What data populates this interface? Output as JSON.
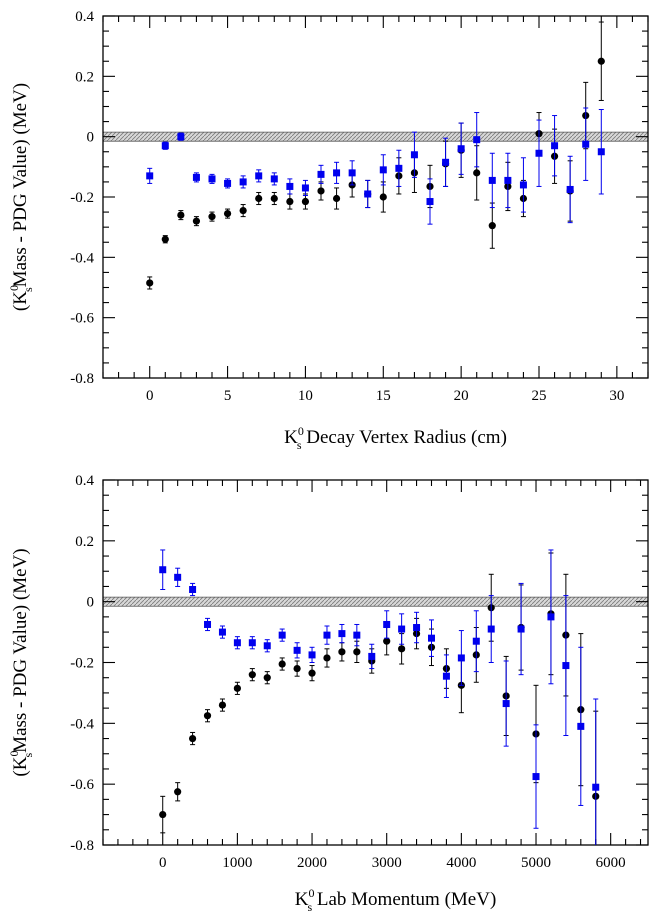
{
  "chart_data": [
    {
      "type": "scatter",
      "xlabel": "K Decay Vertex Radius (cm)",
      "ylabel": "(K Mass - PDG Value) (MeV)",
      "label_parts": {
        "x": {
          "k": "K",
          "sup": "0",
          "sub": "s",
          "rest": " Decay Vertex Radius (cm)"
        },
        "y": {
          "open": "(K",
          "sup": "0",
          "sub": "s",
          "rest": "Mass - PDG Value) (MeV)"
        }
      },
      "xlim": [
        -3,
        32
      ],
      "ylim": [
        -0.8,
        0.4
      ],
      "xticks": [
        0,
        5,
        10,
        15,
        20,
        25,
        30
      ],
      "xtick_labels": [
        "0",
        "5",
        "10",
        "15",
        "20",
        "25",
        "30"
      ],
      "yticks": [
        -0.8,
        -0.6,
        -0.4,
        -0.2,
        0,
        0.2,
        0.4
      ],
      "ytick_labels": [
        "-0.8",
        "-0.6",
        "-0.4",
        "-0.2",
        "0",
        "0.2",
        "0.4"
      ],
      "band": [
        -0.015,
        0.015
      ],
      "series": [
        {
          "color": "#000000",
          "marker": "circle",
          "x": [
            0,
            1,
            2,
            3,
            4,
            5,
            6,
            7,
            8,
            9,
            10,
            11,
            12,
            13,
            14,
            15,
            16,
            17,
            18,
            19,
            20,
            21,
            22,
            23,
            24,
            25,
            26,
            27,
            28,
            29
          ],
          "y": [
            -0.485,
            -0.34,
            -0.26,
            -0.28,
            -0.265,
            -0.255,
            -0.245,
            -0.205,
            -0.205,
            -0.215,
            -0.215,
            -0.18,
            -0.205,
            -0.16,
            -0.19,
            -0.2,
            -0.13,
            -0.12,
            -0.165,
            -0.09,
            -0.045,
            -0.12,
            -0.295,
            -0.165,
            -0.205,
            0.01,
            -0.065,
            -0.18,
            0.07,
            0.25
          ],
          "err": [
            0.02,
            0.012,
            0.015,
            0.015,
            0.015,
            0.015,
            0.02,
            0.02,
            0.02,
            0.025,
            0.025,
            0.03,
            0.035,
            0.04,
            0.045,
            0.05,
            0.06,
            0.065,
            0.07,
            0.075,
            0.09,
            0.09,
            0.075,
            0.08,
            0.06,
            0.07,
            0.09,
            0.1,
            0.11,
            0.13
          ]
        },
        {
          "color": "#0000ee",
          "marker": "square",
          "x": [
            0,
            1,
            2,
            3,
            4,
            5,
            6,
            7,
            8,
            9,
            10,
            11,
            12,
            13,
            14,
            15,
            16,
            17,
            18,
            19,
            20,
            21,
            22,
            23,
            24,
            25,
            26,
            27,
            28,
            29
          ],
          "y": [
            -0.13,
            -0.03,
            0.0,
            -0.135,
            -0.14,
            -0.155,
            -0.15,
            -0.13,
            -0.14,
            -0.165,
            -0.17,
            -0.125,
            -0.12,
            -0.12,
            -0.19,
            -0.11,
            -0.105,
            -0.06,
            -0.215,
            -0.085,
            -0.04,
            -0.01,
            -0.145,
            -0.145,
            -0.16,
            -0.055,
            -0.03,
            -0.175,
            -0.025,
            -0.05
          ],
          "err": [
            0.025,
            0.012,
            0.012,
            0.015,
            0.015,
            0.015,
            0.02,
            0.02,
            0.02,
            0.025,
            0.025,
            0.03,
            0.035,
            0.04,
            0.045,
            0.05,
            0.06,
            0.075,
            0.075,
            0.08,
            0.085,
            0.09,
            0.09,
            0.09,
            0.09,
            0.11,
            0.1,
            0.11,
            0.12,
            0.14
          ]
        }
      ]
    },
    {
      "type": "scatter",
      "xlabel": "K Lab Momentum (MeV)",
      "ylabel": "(K Mass - PDG Value) (MeV)",
      "label_parts": {
        "x": {
          "k": "K",
          "sup": "0",
          "sub": "s",
          "rest": " Lab Momentum (MeV)"
        },
        "y": {
          "open": "(K",
          "sup": "0",
          "sub": "s",
          "rest": "Mass - PDG Value) (MeV)"
        }
      },
      "xlim": [
        -800,
        6500
      ],
      "ylim": [
        -0.8,
        0.4
      ],
      "xticks": [
        0,
        1000,
        2000,
        3000,
        4000,
        5000,
        6000
      ],
      "xtick_labels": [
        "0",
        "1000",
        "2000",
        "3000",
        "4000",
        "5000",
        "6000"
      ],
      "yticks": [
        -0.8,
        -0.6,
        -0.4,
        -0.2,
        0,
        0.2,
        0.4
      ],
      "ytick_labels": [
        "-0.8",
        "-0.6",
        "-0.4",
        "-0.2",
        "0",
        "0.2",
        "0.4"
      ],
      "band": [
        -0.015,
        0.015
      ],
      "series": [
        {
          "color": "#000000",
          "marker": "circle",
          "x": [
            0,
            200,
            400,
            600,
            800,
            1000,
            1200,
            1400,
            1600,
            1800,
            2000,
            2200,
            2400,
            2600,
            2800,
            3000,
            3200,
            3400,
            3600,
            3800,
            4000,
            4200,
            4400,
            4600,
            4800,
            5000,
            5200,
            5400,
            5600,
            5800
          ],
          "y": [
            -0.7,
            -0.625,
            -0.45,
            -0.375,
            -0.34,
            -0.285,
            -0.24,
            -0.25,
            -0.205,
            -0.22,
            -0.235,
            -0.185,
            -0.165,
            -0.165,
            -0.195,
            -0.13,
            -0.155,
            -0.105,
            -0.15,
            -0.22,
            -0.275,
            -0.175,
            -0.02,
            -0.31,
            -0.085,
            -0.435,
            -0.04,
            -0.11,
            -0.355,
            -0.64
          ],
          "err": [
            0.06,
            0.03,
            0.02,
            0.02,
            0.02,
            0.02,
            0.02,
            0.02,
            0.02,
            0.025,
            0.025,
            0.03,
            0.03,
            0.035,
            0.04,
            0.045,
            0.05,
            0.05,
            0.06,
            0.065,
            0.09,
            0.09,
            0.11,
            0.13,
            0.14,
            0.16,
            0.2,
            0.2,
            0.25,
            0.28
          ]
        },
        {
          "color": "#0000ee",
          "marker": "square",
          "x": [
            0,
            200,
            400,
            600,
            800,
            1000,
            1200,
            1400,
            1600,
            1800,
            2000,
            2200,
            2400,
            2600,
            2800,
            3000,
            3200,
            3400,
            3600,
            3800,
            4000,
            4200,
            4400,
            4600,
            4800,
            5000,
            5200,
            5400,
            5600,
            5800
          ],
          "y": [
            0.105,
            0.08,
            0.04,
            -0.075,
            -0.1,
            -0.135,
            -0.135,
            -0.145,
            -0.11,
            -0.16,
            -0.175,
            -0.11,
            -0.105,
            -0.11,
            -0.18,
            -0.075,
            -0.09,
            -0.085,
            -0.12,
            -0.245,
            -0.185,
            -0.13,
            -0.09,
            -0.335,
            -0.09,
            -0.575,
            -0.05,
            -0.21,
            -0.41,
            -0.61
          ],
          "err": [
            0.065,
            0.03,
            0.02,
            0.02,
            0.02,
            0.02,
            0.02,
            0.02,
            0.02,
            0.025,
            0.025,
            0.03,
            0.03,
            0.035,
            0.04,
            0.045,
            0.05,
            0.05,
            0.06,
            0.07,
            0.09,
            0.1,
            0.11,
            0.14,
            0.15,
            0.17,
            0.22,
            0.23,
            0.26,
            0.29
          ]
        }
      ]
    }
  ]
}
